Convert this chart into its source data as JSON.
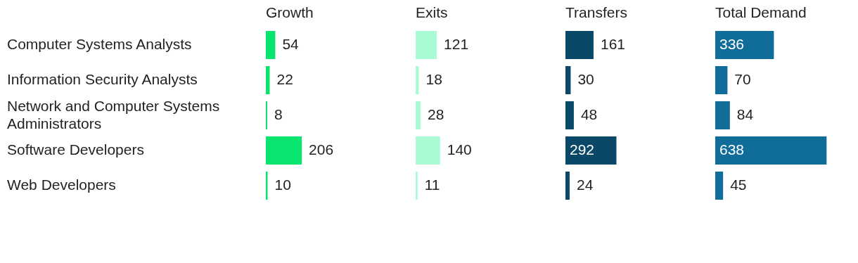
{
  "chart_data": [
    {
      "type": "bar",
      "orientation": "horizontal",
      "data_labels": true,
      "tick_labels": "y",
      "title": "Growth",
      "color": "#09e46f",
      "categories": [
        "Computer Systems Analysts",
        "Information Security Analysts",
        "Network and Computer Systems Administrators",
        "Software Developers",
        "Web Developers"
      ],
      "values": [
        54,
        22,
        8,
        206,
        10
      ]
    },
    {
      "type": "bar",
      "orientation": "horizontal",
      "data_labels": true,
      "tick_labels": false,
      "title": "Exits",
      "color": "#a8fbd3",
      "values": [
        121,
        18,
        28,
        140,
        11
      ]
    },
    {
      "type": "bar",
      "orientation": "horizontal",
      "data_labels": true,
      "tick_labels": false,
      "title": "Transfers",
      "color": "#0b4867",
      "values": [
        161,
        30,
        48,
        292,
        24
      ]
    },
    {
      "type": "bar",
      "orientation": "horizontal",
      "data_labels": true,
      "tick_labels": false,
      "title": "Total Demand",
      "color": "#106c99",
      "values": [
        336,
        70,
        84,
        638,
        45
      ]
    }
  ]
}
